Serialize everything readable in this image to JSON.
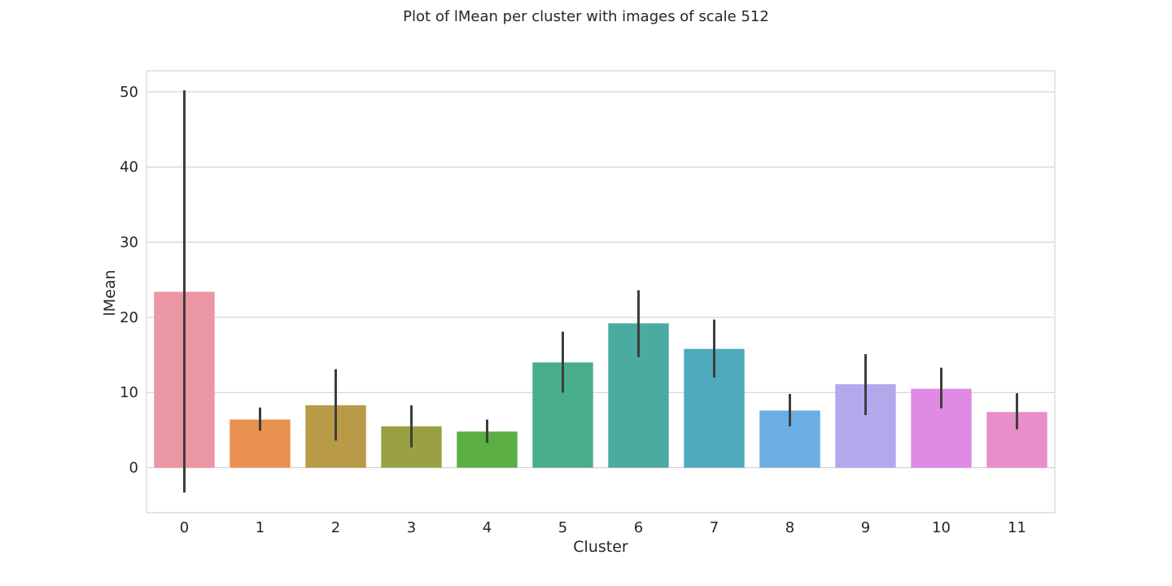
{
  "chart_data": {
    "type": "bar",
    "title": "Plot of lMean per cluster with images of scale 512",
    "xlabel": "Cluster",
    "ylabel": "lMean",
    "categories": [
      "0",
      "1",
      "2",
      "3",
      "4",
      "5",
      "6",
      "7",
      "8",
      "9",
      "10",
      "11"
    ],
    "values": [
      23.4,
      6.4,
      8.3,
      5.5,
      4.8,
      14.0,
      19.2,
      15.8,
      7.6,
      11.1,
      10.5,
      7.4
    ],
    "error_low": [
      -3.3,
      4.9,
      3.6,
      2.7,
      3.3,
      10.0,
      14.7,
      12.0,
      5.5,
      7.0,
      7.9,
      5.1
    ],
    "error_high": [
      50.2,
      8.0,
      13.1,
      8.3,
      6.4,
      18.1,
      23.6,
      19.7,
      9.8,
      15.1,
      13.3,
      9.9
    ],
    "yticks": [
      0,
      10,
      20,
      30,
      40,
      50
    ],
    "ylim": [
      -6,
      52.8
    ],
    "grid": true,
    "colors": [
      "#ea96a3",
      "#e8904f",
      "#b89a47",
      "#9aa142",
      "#5aae44",
      "#48ae89",
      "#4aaba0",
      "#4eaabd",
      "#6aaee4",
      "#b4a8ec",
      "#e08ae6",
      "#e88ec8"
    ],
    "errorbar_color": "#3d3d3d"
  }
}
